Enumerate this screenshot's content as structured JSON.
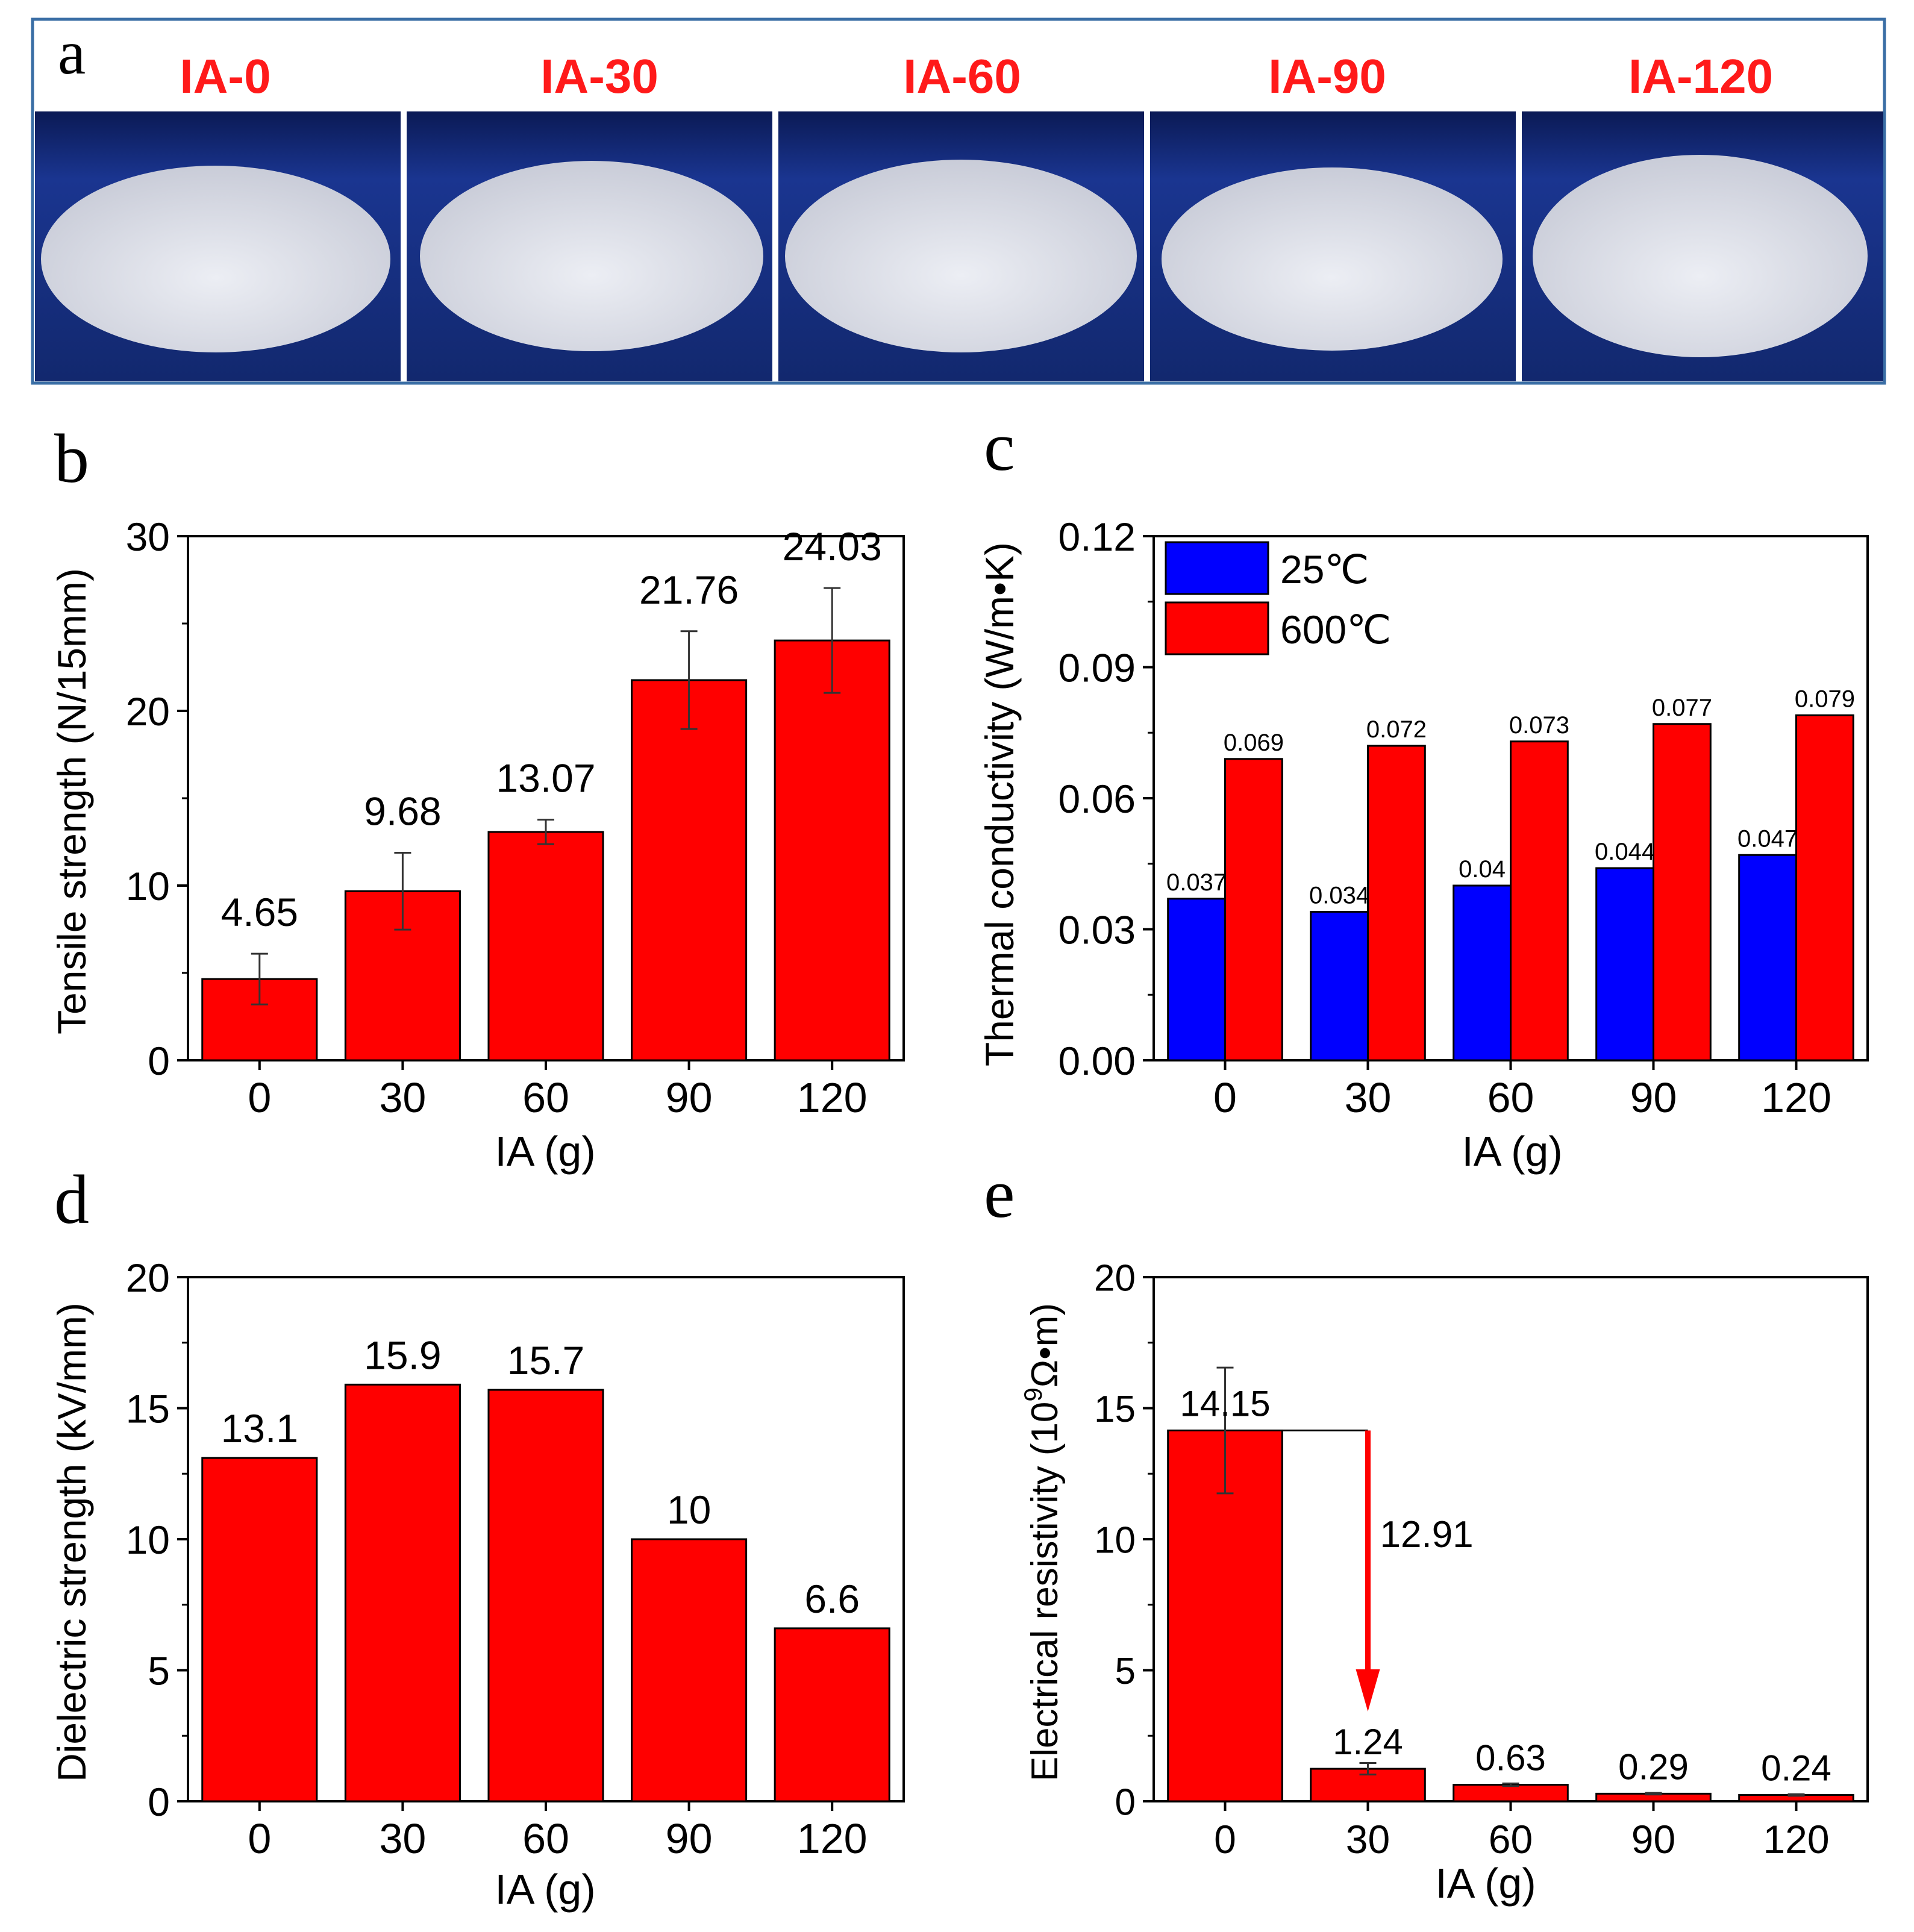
{
  "colors": {
    "bar_red": "#ff0000",
    "bar_blue": "#0000ff",
    "axis": "#000000",
    "photo_label": "#ff1a1a",
    "photo_border": "#3a6ea5",
    "photo_bg": "#16307a",
    "disc": "#dcdee6"
  },
  "panel_a": {
    "letter": "a",
    "photos": [
      {
        "label": "IA-0"
      },
      {
        "label": "IA-30"
      },
      {
        "label": "IA-60"
      },
      {
        "label": "IA-90"
      },
      {
        "label": "IA-120"
      }
    ]
  },
  "chart_data": [
    {
      "id": "b",
      "letter": "b",
      "type": "bar",
      "categories": [
        "0",
        "30",
        "60",
        "90",
        "120"
      ],
      "xlabel": "IA (g)",
      "ylabel": "Tensile strength (N/15mm)",
      "ylim": [
        0,
        30
      ],
      "yticks": [
        0,
        10,
        20,
        30
      ],
      "ytick_labels": [
        "0",
        "10",
        "20",
        "30"
      ],
      "series": [
        {
          "name": "Tensile strength",
          "color": "#ff0000",
          "values": [
            4.65,
            9.68,
            13.07,
            21.76,
            24.03
          ],
          "errors": [
            1.45,
            2.2,
            0.7,
            2.8,
            3.0
          ],
          "labels": [
            "4.65",
            "9.68",
            "13.07",
            "21.76",
            "24.03"
          ]
        }
      ]
    },
    {
      "id": "c",
      "letter": "c",
      "type": "bar",
      "categories": [
        "0",
        "30",
        "60",
        "90",
        "120"
      ],
      "xlabel": "IA (g)",
      "ylabel": "Thermal conductivity (W/m•K)",
      "ylim": [
        0,
        0.12
      ],
      "yticks": [
        0,
        0.03,
        0.06,
        0.09,
        0.12
      ],
      "ytick_labels": [
        "0.00",
        "0.03",
        "0.06",
        "0.09",
        "0.12"
      ],
      "legend": "top-left",
      "series": [
        {
          "name": "25℃",
          "color": "#0000ff",
          "values": [
            0.037,
            0.034,
            0.04,
            0.044,
            0.047
          ],
          "labels": [
            "0.037",
            "0.034",
            "0.04",
            "0.044",
            "0.047"
          ]
        },
        {
          "name": "600℃",
          "color": "#ff0000",
          "values": [
            0.069,
            0.072,
            0.073,
            0.077,
            0.079
          ],
          "labels": [
            "0.069",
            "0.072",
            "0.073",
            "0.077",
            "0.079"
          ]
        }
      ]
    },
    {
      "id": "d",
      "letter": "d",
      "type": "bar",
      "categories": [
        "0",
        "30",
        "60",
        "90",
        "120"
      ],
      "xlabel": "IA (g)",
      "ylabel": "Dielectric strength (kV/mm)",
      "ylim": [
        0,
        20
      ],
      "yticks": [
        0,
        5,
        10,
        15,
        20
      ],
      "ytick_labels": [
        "0",
        "5",
        "10",
        "15",
        "20"
      ],
      "series": [
        {
          "name": "Dielectric strength",
          "color": "#ff0000",
          "values": [
            13.1,
            15.9,
            15.7,
            10,
            6.6
          ],
          "labels": [
            "13.1",
            "15.9",
            "15.7",
            "10",
            "6.6"
          ]
        }
      ]
    },
    {
      "id": "e",
      "letter": "e",
      "type": "bar",
      "categories": [
        "0",
        "30",
        "60",
        "90",
        "120"
      ],
      "xlabel": "IA (g)",
      "ylabel_pre": "Electrical resistivity (10",
      "ylabel_sup": "9",
      "ylabel_post": "Ω•m)",
      "ylim": [
        0,
        20
      ],
      "yticks": [
        0,
        5,
        10,
        15,
        20
      ],
      "ytick_labels": [
        "0",
        "5",
        "10",
        "15",
        "20"
      ],
      "annotation": {
        "text": "12.91",
        "from": 14.15,
        "to": 1.24
      },
      "series": [
        {
          "name": "Electrical resistivity",
          "color": "#ff0000",
          "values": [
            14.15,
            1.24,
            0.63,
            0.29,
            0.24
          ],
          "errors": [
            2.4,
            0.22,
            0.05,
            0.03,
            0.03
          ],
          "labels": [
            "14.15",
            "1.24",
            "0.63",
            "0.29",
            "0.24"
          ]
        }
      ]
    }
  ]
}
